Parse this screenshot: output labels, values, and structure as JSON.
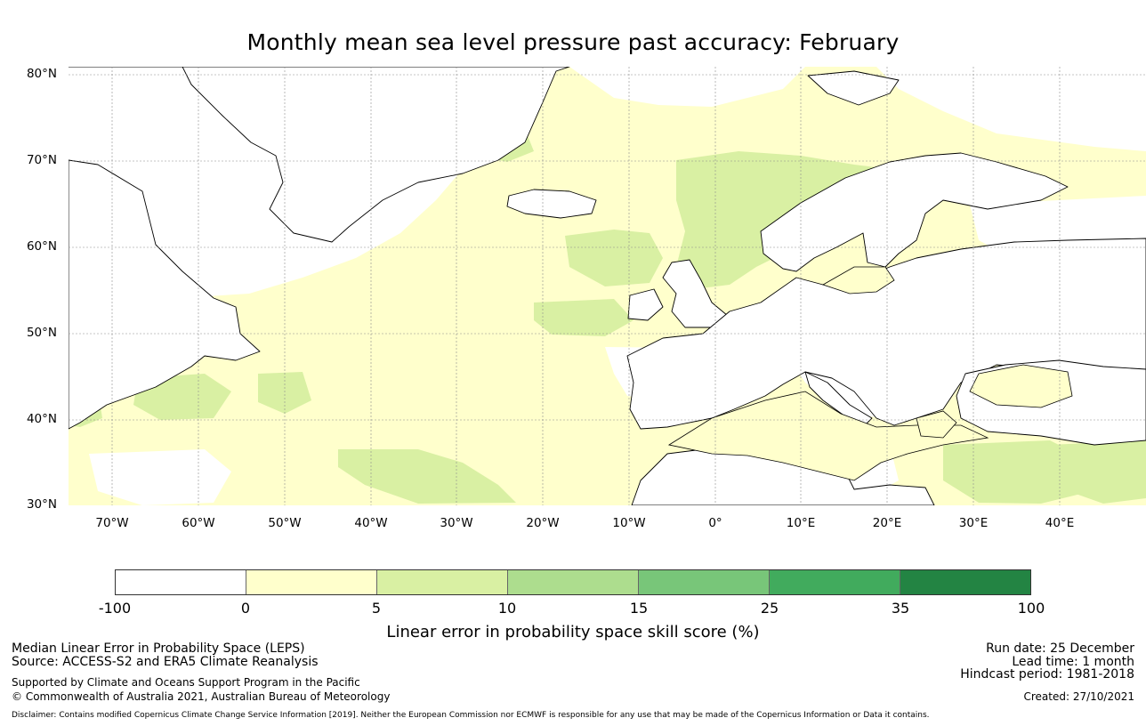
{
  "title": "Monthly mean sea level pressure past accuracy: February",
  "map": {
    "region": "North Atlantic and Europe",
    "lat_labels": [
      "80°N",
      "70°N",
      "60°N",
      "50°N",
      "40°N",
      "30°N"
    ],
    "lon_labels": [
      "70°W",
      "60°W",
      "50°W",
      "40°W",
      "30°W",
      "20°W",
      "10°W",
      "0°",
      "10°E",
      "20°E",
      "30°E",
      "40°E"
    ],
    "colors": {
      "ocean_high": "#d9f0a3",
      "ocean_low": "#ffffcc",
      "land": "#ffffff",
      "coast": "#000000",
      "grid": "#8c8c8c"
    }
  },
  "colorbar": {
    "ticks": [
      "-100",
      "0",
      "5",
      "10",
      "15",
      "25",
      "35",
      "100"
    ],
    "colors": [
      "#ffffff",
      "#ffffcc",
      "#d9f0a3",
      "#addd8e",
      "#78c679",
      "#41ab5d",
      "#238443"
    ],
    "label": "Linear error in probability space skill score (%)"
  },
  "footer": {
    "left": {
      "line1": "Median Linear Error in Probability Space (LEPS)",
      "line2": "Source: ACCESS-S2 and ERA5 Climate Reanalysis",
      "line3": "Supported by Climate and Oceans Support Program in the Pacific",
      "line4": "© Commonwealth of Australia 2021, Australian Bureau of Meteorology"
    },
    "right": {
      "run_date": "Run date: 25 December",
      "lead_time": "Lead time: 1 month",
      "hindcast": "Hindcast period: 1981-2018",
      "created": "Created: 27/10/2021"
    },
    "disclaimer": "Disclaimer: Contains modified Copernicus Climate Change Service Information [2019]. Neither the European Commission nor ECMWF is responsible for any use that may be made of the Copernicus Information or Data it contains."
  }
}
